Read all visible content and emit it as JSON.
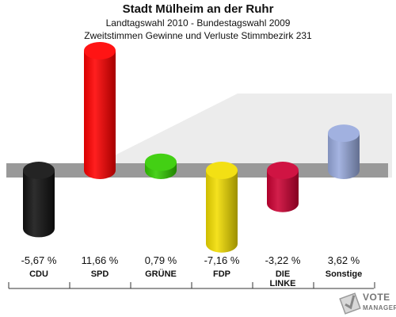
{
  "header": {
    "title": "Stadt Mülheim an der Ruhr",
    "subtitle": "Landtagswahl 2010 - Bundestagswahl 2009",
    "subtitle2": "Zweitstimmen Gewinne und Verluste Stimmbezirk 231"
  },
  "logo": {
    "word1": "VOTE",
    "word2": "MANAGER"
  },
  "chart_data": {
    "type": "bar",
    "categories": [
      "CDU",
      "SPD",
      "GRÜNE",
      "FDP",
      "DIE LINKE",
      "Sonstige"
    ],
    "category_lines": [
      [
        "CDU"
      ],
      [
        "SPD"
      ],
      [
        "GRÜNE"
      ],
      [
        "FDP"
      ],
      [
        "DIE",
        "LINKE"
      ],
      [
        "Sonstige"
      ]
    ],
    "values": [
      -5.67,
      11.66,
      0.79,
      -7.16,
      -3.22,
      3.62
    ],
    "value_labels": [
      "-5,67 %",
      "11,66 %",
      "0,79 %",
      "-7,16 %",
      "-3,22 %",
      "3,62 %"
    ],
    "colors": [
      "#111111",
      "#ff0000",
      "#33cc00",
      "#f2dd00",
      "#cc0033",
      "#99aadd"
    ],
    "ylim": [
      -8,
      12
    ],
    "title": "Stadt Mülheim an der Ruhr",
    "subtitle": "Zweitstimmen Gewinne und Verluste Stimmbezirk 231",
    "xlabel": "",
    "ylabel": "",
    "grid": false
  }
}
